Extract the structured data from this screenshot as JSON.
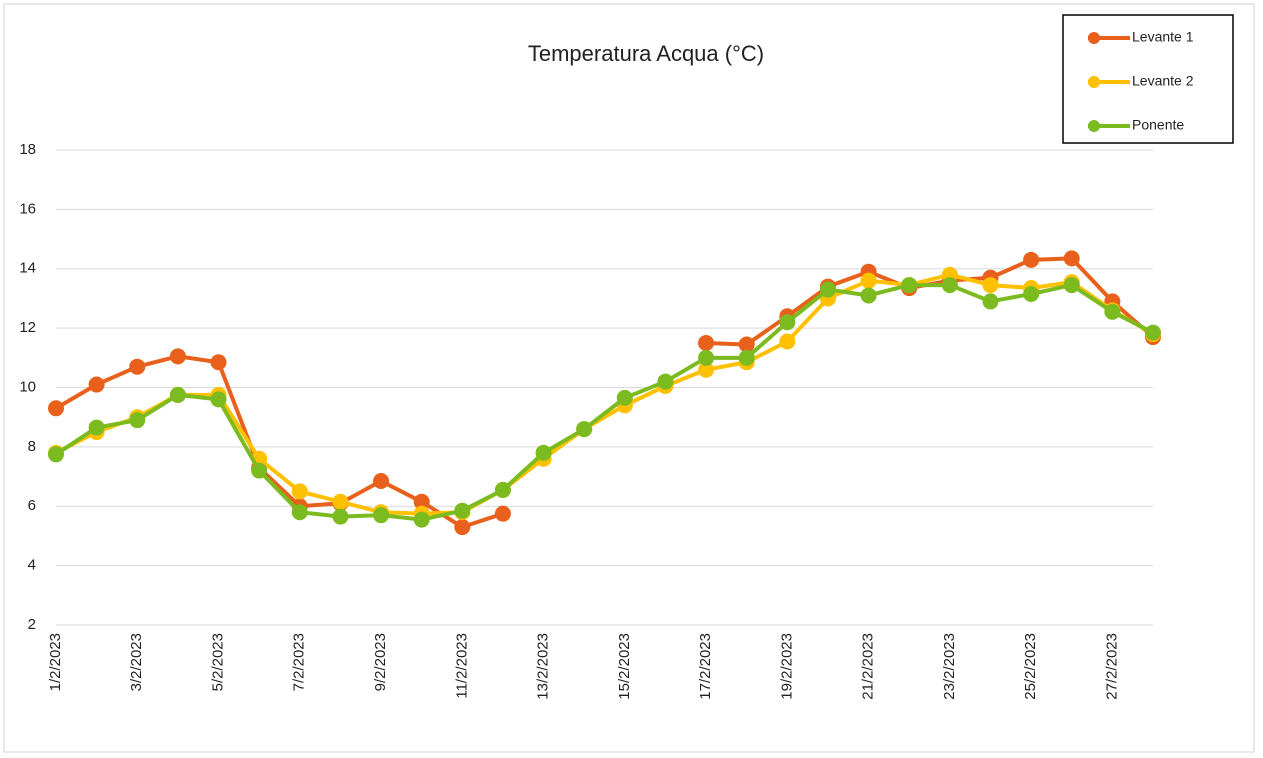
{
  "chart_data": {
    "type": "line",
    "title": "Temperatura Acqua (°C)",
    "categories": [
      "1/2/2023",
      null,
      "3/2/2023",
      null,
      "5/2/2023",
      null,
      "7/2/2023",
      null,
      "9/2/2023",
      null,
      "11/2/2023",
      null,
      "13/2/2023",
      null,
      "15/2/2023",
      null,
      "17/2/2023",
      null,
      "19/2/2023",
      null,
      "21/2/2023",
      null,
      "23/2/2023",
      null,
      "25/2/2023",
      null,
      "27/2/2023",
      null
    ],
    "series": [
      {
        "name": "Levante 1",
        "color": "#e8601c",
        "values": [
          9.3,
          10.1,
          10.7,
          11.05,
          10.85,
          7.3,
          6.0,
          6.1,
          6.85,
          6.15,
          5.3,
          5.75,
          null,
          null,
          null,
          null,
          11.5,
          11.45,
          12.4,
          13.4,
          13.9,
          13.35,
          13.6,
          13.7,
          14.3,
          14.35,
          12.9,
          11.7
        ]
      },
      {
        "name": "Levante 2",
        "color": "#ffc000",
        "values": [
          7.8,
          8.5,
          9.0,
          9.75,
          9.75,
          7.6,
          6.5,
          6.15,
          5.8,
          5.75,
          5.8,
          6.55,
          7.6,
          8.6,
          9.4,
          10.05,
          10.6,
          10.85,
          11.55,
          13.0,
          13.6,
          13.45,
          13.8,
          13.45,
          13.35,
          13.55,
          12.6,
          11.8
        ]
      },
      {
        "name": "Ponente",
        "color": "#7cbb1f",
        "values": [
          7.75,
          8.65,
          8.9,
          9.75,
          9.6,
          7.2,
          5.8,
          5.65,
          5.7,
          5.55,
          5.85,
          6.55,
          7.8,
          8.6,
          9.65,
          10.2,
          11.0,
          11.0,
          12.2,
          13.3,
          13.1,
          13.45,
          13.45,
          12.9,
          13.15,
          13.45,
          12.55,
          11.85
        ]
      }
    ],
    "ylim": [
      2,
      18
    ],
    "yticks": [
      2,
      4,
      6,
      8,
      10,
      12,
      14,
      16,
      18
    ],
    "grid": true,
    "legend": "top-right"
  }
}
